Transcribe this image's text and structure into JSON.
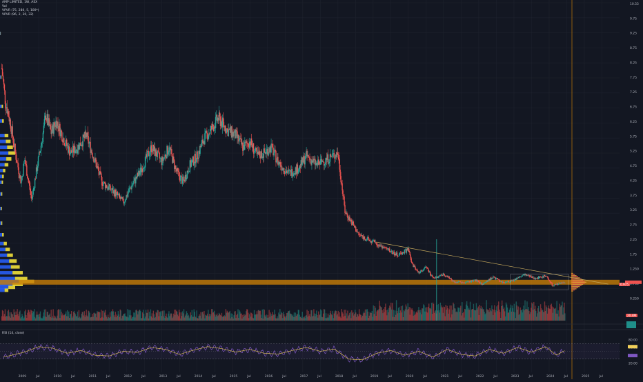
{
  "header": {
    "symbol_line": "AMP LIMITED, 1W, ASX",
    "volume_label": "Vol",
    "vpvr_1": "VPVR (75, 280, 5, 100*)",
    "vpvr_2": "VPVR (96, 2, 30, 32)",
    "rsi_label": "RSI (14, close)"
  },
  "colors": {
    "background": "#131722",
    "up_candle": "#26a69a",
    "down_candle": "#ef5350",
    "poc_band": "#c77d07",
    "profile_blue": "#2962ff",
    "profile_yellow": "#f2e13a",
    "rsi_line": "#7e57c2",
    "rsi_ma": "#f2d05a",
    "trendline": "#c6a95c"
  },
  "price_axis_ticks": [
    "10.55",
    "9.75",
    "9.25",
    "8.75",
    "8.25",
    "7.75",
    "7.25",
    "6.75",
    "6.25",
    "5.75",
    "5.25",
    "4.75",
    "4.25",
    "3.75",
    "3.25",
    "2.75",
    "2.25",
    "1.75",
    "1.250",
    "0.750",
    "0.250"
  ],
  "time_axis_ticks": [
    "2009",
    "Jul",
    "2010",
    "Jul",
    "2011",
    "Jul",
    "2012",
    "Jul",
    "2013",
    "Jul",
    "2014",
    "Jul",
    "2015",
    "Jul",
    "2016",
    "Jul",
    "2017",
    "Jul",
    "2018",
    "Jul",
    "2019",
    "Jul",
    "2020",
    "Jul",
    "2021",
    "Jul",
    "2022",
    "Jul",
    "2023",
    "Jul",
    "2024",
    "Jul",
    "2025",
    "Jul"
  ],
  "rsi_axis_ticks": [
    "80.00",
    "61.11",
    "38.19",
    "20.00"
  ],
  "price_tags": {
    "last_price": "0.975",
    "volume_value": "20.4M"
  },
  "chart_data": {
    "type": "candlestick",
    "title": "AMP LIMITED, 1W, ASX",
    "x_range": [
      2008.3,
      2025.9
    ],
    "y_range": [
      0.25,
      10.55
    ],
    "close_series": {
      "x": [
        2008.35,
        2008.45,
        2008.6,
        2008.75,
        2008.9,
        2009.0,
        2009.1,
        2009.2,
        2009.35,
        2009.5,
        2009.6,
        2009.75,
        2009.9,
        2010.1,
        2010.3,
        2010.5,
        2010.75,
        2010.95,
        2011.2,
        2011.4,
        2011.6,
        2011.8,
        2012.0,
        2012.3,
        2012.6,
        2012.9,
        2013.1,
        2013.3,
        2013.5,
        2013.7,
        2013.9,
        2014.1,
        2014.3,
        2014.5,
        2014.75,
        2015.0,
        2015.2,
        2015.4,
        2015.6,
        2015.8,
        2016.0,
        2016.2,
        2016.5,
        2016.8,
        2017.0,
        2017.3,
        2017.6,
        2017.9,
        2018.0,
        2018.1,
        2018.3,
        2018.5,
        2018.8,
        2019.0,
        2019.3,
        2019.6,
        2019.9,
        2020.0,
        2020.2,
        2020.4,
        2020.6,
        2020.9,
        2021.2,
        2021.5,
        2021.8,
        2022.0,
        2022.3,
        2022.6,
        2022.9,
        2023.2,
        2023.5,
        2023.8,
        2024.0,
        2024.1,
        2024.25,
        2024.35
      ],
      "y": [
        8.3,
        7.2,
        6.4,
        5.3,
        4.4,
        5.2,
        4.5,
        3.8,
        4.9,
        5.9,
        6.7,
        6.1,
        6.5,
        5.9,
        5.4,
        5.6,
        6.0,
        5.3,
        4.4,
        4.2,
        4.0,
        3.7,
        4.2,
        4.8,
        5.6,
        5.1,
        5.6,
        4.8,
        4.4,
        5.0,
        5.3,
        5.9,
        6.2,
        6.6,
        6.2,
        6.0,
        5.6,
        5.8,
        5.3,
        5.4,
        5.6,
        5.1,
        4.7,
        4.9,
        5.3,
        5.0,
        5.2,
        5.4,
        4.4,
        3.4,
        3.0,
        2.6,
        2.4,
        2.3,
        2.1,
        1.9,
        2.1,
        1.6,
        1.3,
        1.5,
        1.1,
        1.25,
        1.0,
        0.95,
        1.05,
        0.9,
        1.15,
        0.95,
        1.05,
        1.25,
        1.1,
        1.2,
        0.85,
        0.9,
        0.95,
        0.975
      ]
    },
    "poc_level": 0.975,
    "trendline": {
      "from": [
        2019.0,
        2.35
      ],
      "to": [
        2024.6,
        1.05
      ]
    },
    "rsi_series": {
      "x": [
        2008.4,
        2009.0,
        2009.4,
        2009.8,
        2010.2,
        2010.6,
        2011.0,
        2011.4,
        2011.8,
        2012.2,
        2012.6,
        2013.0,
        2013.4,
        2013.8,
        2014.2,
        2014.6,
        2015.0,
        2015.4,
        2015.8,
        2016.2,
        2016.6,
        2017.0,
        2017.4,
        2017.8,
        2018.2,
        2018.6,
        2019.0,
        2019.4,
        2019.8,
        2020.2,
        2020.6,
        2021.0,
        2021.4,
        2021.8,
        2022.2,
        2022.6,
        2023.0,
        2023.4,
        2023.8,
        2024.1,
        2024.35
      ],
      "y": [
        35,
        48,
        62,
        58,
        45,
        52,
        40,
        38,
        50,
        47,
        60,
        55,
        42,
        53,
        62,
        57,
        48,
        55,
        45,
        43,
        52,
        60,
        50,
        56,
        30,
        28,
        45,
        52,
        40,
        50,
        35,
        55,
        42,
        38,
        55,
        45,
        60,
        48,
        62,
        40,
        52
      ]
    },
    "rsi_levels": {
      "upper": 70,
      "lower": 30
    }
  }
}
